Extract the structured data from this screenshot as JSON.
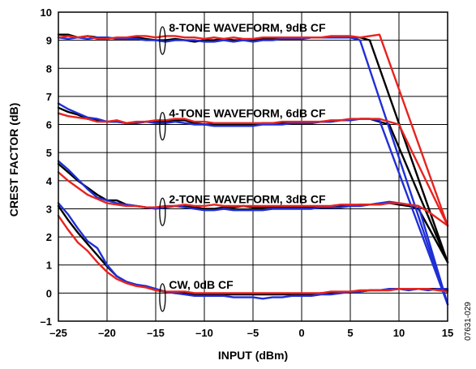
{
  "chart_data": {
    "type": "line",
    "xlabel": "INPUT (dBm)",
    "ylabel": "CREST FACTOR (dB)",
    "xlim": [
      -25,
      15
    ],
    "ylim": [
      -1,
      10
    ],
    "xticks": [
      "–25",
      "–20",
      "–15",
      "–10",
      "–5",
      "0",
      "5",
      "10",
      "15"
    ],
    "yticks": [
      "–1",
      "0",
      "1",
      "2",
      "3",
      "4",
      "5",
      "6",
      "7",
      "8",
      "9",
      "10"
    ],
    "grid": true,
    "figure_id": "07631-029",
    "annotations": [
      {
        "text": "8-TONE WAVEFORM, 9dB CF",
        "x": -14.3,
        "y": 9.25
      },
      {
        "text": "4-TONE WAVEFORM, 6dB CF",
        "x": -14.3,
        "y": 6.2
      },
      {
        "text": "2-TONE WAVEFORM, 3dB CF",
        "x": -14.3,
        "y": 3.15
      },
      {
        "text": "CW, 0dB CF",
        "x": -14.3,
        "y": 0.1
      }
    ],
    "colors": {
      "black": "#000000",
      "red": "#e8231f",
      "blue": "#1f2fd6"
    },
    "series": [
      {
        "group": "8-TONE",
        "color": "black",
        "x": [
          -25,
          -24,
          -23,
          -22,
          -21,
          -20,
          -19,
          -18,
          -17,
          -16,
          -15,
          -14,
          -13,
          -12,
          -11,
          -10,
          -9,
          -8,
          -7,
          -6,
          -5,
          -4,
          -3,
          -2,
          -1,
          0,
          1,
          2,
          3,
          4,
          5,
          6,
          7,
          15
        ],
        "y": [
          9.2,
          9.2,
          9.1,
          9.15,
          9.1,
          9.1,
          9.05,
          9.1,
          9.1,
          9.05,
          9.0,
          9.0,
          9.05,
          9.0,
          8.95,
          9.0,
          9.0,
          9.05,
          9.0,
          9.0,
          9.0,
          9.05,
          9.05,
          9.05,
          9.05,
          9.05,
          9.1,
          9.1,
          9.1,
          9.1,
          9.1,
          9.1,
          9.0,
          1.1
        ]
      },
      {
        "group": "8-TONE",
        "color": "red",
        "x": [
          -25,
          -24,
          -23,
          -22,
          -21,
          -20,
          -19,
          -18,
          -17,
          -16,
          -15,
          -14,
          -13,
          -12,
          -11,
          -10,
          -9,
          -8,
          -7,
          -6,
          -5,
          -4,
          -3,
          -2,
          -1,
          0,
          1,
          2,
          3,
          4,
          5,
          6,
          7,
          8,
          15
        ],
        "y": [
          9.1,
          9.15,
          9.1,
          9.15,
          9.05,
          9.05,
          9.1,
          9.1,
          9.15,
          9.15,
          9.1,
          9.15,
          9.15,
          9.1,
          9.1,
          9.05,
          9.1,
          9.05,
          9.1,
          9.05,
          9.05,
          9.1,
          9.1,
          9.1,
          9.1,
          9.1,
          9.1,
          9.1,
          9.15,
          9.15,
          9.15,
          9.1,
          9.15,
          9.2,
          2.4
        ]
      },
      {
        "group": "8-TONE",
        "color": "blue",
        "x": [
          -25,
          -24,
          -23,
          -22,
          -21,
          -20,
          -19,
          -18,
          -17,
          -16,
          -15,
          -14,
          -13,
          -12,
          -11,
          -10,
          -9,
          -8,
          -7,
          -6,
          -5,
          -4,
          -3,
          -2,
          -1,
          0,
          1,
          2,
          3,
          4,
          5,
          6,
          15
        ],
        "y": [
          9.1,
          9.05,
          9.1,
          9.05,
          9.1,
          9.1,
          9.05,
          9.05,
          9.05,
          9.0,
          9.0,
          8.95,
          9.0,
          9.0,
          9.0,
          8.95,
          8.95,
          9.0,
          8.95,
          9.0,
          8.95,
          9.0,
          9.0,
          9.05,
          9.05,
          9.05,
          9.1,
          9.1,
          9.1,
          9.1,
          9.1,
          9.0,
          -0.4
        ]
      },
      {
        "group": "4-TONE",
        "color": "black",
        "x": [
          -25,
          -24,
          -23,
          -22,
          -21,
          -20,
          -19,
          -18,
          -17,
          -16,
          -15,
          -14,
          -13,
          -12,
          -11,
          -10,
          -9,
          -8,
          -7,
          -6,
          -5,
          -4,
          -3,
          -2,
          -1,
          0,
          1,
          2,
          3,
          4,
          5,
          6,
          7,
          8,
          9,
          15
        ],
        "y": [
          6.6,
          6.45,
          6.35,
          6.2,
          6.15,
          6.1,
          6.1,
          6.05,
          6.05,
          6.1,
          6.1,
          6.1,
          6.15,
          6.15,
          6.05,
          6.0,
          6.0,
          6.0,
          6.0,
          6.0,
          6.0,
          6.05,
          6.05,
          6.05,
          6.05,
          6.05,
          6.05,
          6.1,
          6.1,
          6.15,
          6.15,
          6.2,
          6.2,
          6.1,
          6.0,
          1.1
        ]
      },
      {
        "group": "4-TONE",
        "color": "red",
        "x": [
          -25,
          -24,
          -23,
          -22,
          -21,
          -20,
          -19,
          -18,
          -17,
          -16,
          -15,
          -14,
          -13,
          -12,
          -11,
          -10,
          -9,
          -8,
          -7,
          -6,
          -5,
          -4,
          -3,
          -2,
          -1,
          0,
          1,
          2,
          3,
          4,
          5,
          6,
          7,
          8,
          9,
          10,
          15
        ],
        "y": [
          6.4,
          6.3,
          6.25,
          6.2,
          6.1,
          6.1,
          6.15,
          6.05,
          6.1,
          6.1,
          6.15,
          6.15,
          6.2,
          6.2,
          6.1,
          6.1,
          6.05,
          6.05,
          6.05,
          6.05,
          6.05,
          6.05,
          6.05,
          6.1,
          6.1,
          6.1,
          6.1,
          6.1,
          6.15,
          6.15,
          6.2,
          6.2,
          6.2,
          6.2,
          6.1,
          6.0,
          2.4
        ]
      },
      {
        "group": "4-TONE",
        "color": "blue",
        "x": [
          -25,
          -24,
          -23,
          -22,
          -21,
          -20,
          -19,
          -18,
          -17,
          -16,
          -15,
          -14,
          -13,
          -12,
          -11,
          -10,
          -9,
          -8,
          -7,
          -6,
          -5,
          -4,
          -3,
          -2,
          -1,
          0,
          1,
          2,
          3,
          4,
          5,
          6,
          7,
          8,
          15
        ],
        "y": [
          6.75,
          6.55,
          6.4,
          6.25,
          6.2,
          6.1,
          6.1,
          6.05,
          6.05,
          6.1,
          6.05,
          6.05,
          6.1,
          6.05,
          6.0,
          6.0,
          5.95,
          5.95,
          5.95,
          5.95,
          5.95,
          6.0,
          6.0,
          6.0,
          6.05,
          6.05,
          6.05,
          6.1,
          6.1,
          6.15,
          6.15,
          6.2,
          6.2,
          6.15,
          -0.4
        ]
      },
      {
        "group": "2-TONE",
        "color": "black",
        "x": [
          -25,
          -24,
          -23,
          -22,
          -21,
          -20,
          -19,
          -18,
          -17,
          -16,
          -15,
          -14,
          -13,
          -12,
          -11,
          -10,
          -9,
          -8,
          -7,
          -6,
          -5,
          -4,
          -3,
          -2,
          -1,
          0,
          1,
          2,
          3,
          4,
          5,
          6,
          7,
          8,
          9,
          10,
          11,
          12,
          15
        ],
        "y": [
          4.6,
          4.3,
          4.0,
          3.75,
          3.5,
          3.3,
          3.3,
          3.15,
          3.1,
          3.05,
          3.05,
          3.05,
          3.1,
          3.1,
          3.05,
          3.0,
          3.0,
          3.05,
          3.05,
          3.1,
          3.05,
          3.05,
          3.05,
          3.05,
          3.05,
          3.05,
          3.05,
          3.05,
          3.05,
          3.1,
          3.1,
          3.15,
          3.15,
          3.15,
          3.2,
          3.15,
          3.1,
          3.0,
          1.1
        ]
      },
      {
        "group": "2-TONE",
        "color": "red",
        "x": [
          -25,
          -24,
          -23,
          -22,
          -21,
          -20,
          -19,
          -18,
          -17,
          -16,
          -15,
          -14,
          -13,
          -12,
          -11,
          -10,
          -9,
          -8,
          -7,
          -6,
          -5,
          -4,
          -3,
          -2,
          -1,
          0,
          1,
          2,
          3,
          4,
          5,
          6,
          7,
          8,
          9,
          10,
          11,
          12,
          13,
          15
        ],
        "y": [
          4.3,
          4.0,
          3.75,
          3.5,
          3.35,
          3.2,
          3.15,
          3.1,
          3.1,
          3.05,
          3.05,
          3.1,
          3.1,
          3.15,
          3.1,
          3.1,
          3.15,
          3.1,
          3.1,
          3.1,
          3.1,
          3.1,
          3.1,
          3.1,
          3.1,
          3.1,
          3.1,
          3.1,
          3.1,
          3.15,
          3.15,
          3.15,
          3.15,
          3.15,
          3.2,
          3.2,
          3.15,
          3.1,
          2.9,
          2.4
        ]
      },
      {
        "group": "2-TONE",
        "color": "blue",
        "x": [
          -25,
          -24,
          -23,
          -22,
          -21,
          -20,
          -19,
          -18,
          -17,
          -16,
          -15,
          -14,
          -13,
          -12,
          -11,
          -10,
          -9,
          -8,
          -7,
          -6,
          -5,
          -4,
          -3,
          -2,
          -1,
          0,
          1,
          2,
          3,
          4,
          5,
          6,
          7,
          8,
          9,
          10,
          11,
          12,
          15
        ],
        "y": [
          4.7,
          4.4,
          4.05,
          3.7,
          3.4,
          3.3,
          3.2,
          3.15,
          3.1,
          3.05,
          3.0,
          3.05,
          3.1,
          3.05,
          3.0,
          2.95,
          2.95,
          3.0,
          2.95,
          2.95,
          2.95,
          2.95,
          3.0,
          3.0,
          3.0,
          3.0,
          3.0,
          3.05,
          3.05,
          3.05,
          3.1,
          3.1,
          3.15,
          3.2,
          3.25,
          3.2,
          3.15,
          3.1,
          -0.4
        ]
      },
      {
        "group": "CW",
        "color": "black",
        "x": [
          -25,
          -24,
          -23,
          -22,
          -21,
          -20,
          -19,
          -18,
          -17,
          -16,
          -15,
          -14,
          -13,
          -12,
          -11,
          -10,
          -9,
          -8,
          -7,
          -6,
          -5,
          -4,
          -3,
          -2,
          -1,
          0,
          1,
          2,
          3,
          4,
          5,
          6,
          7,
          8,
          9,
          10,
          11,
          12,
          13,
          14,
          15
        ],
        "y": [
          3.1,
          2.6,
          2.15,
          1.75,
          1.35,
          0.95,
          0.6,
          0.4,
          0.3,
          0.2,
          0.1,
          0.05,
          0.0,
          0.0,
          -0.05,
          -0.05,
          -0.05,
          -0.05,
          -0.05,
          -0.05,
          -0.05,
          -0.05,
          -0.05,
          -0.05,
          -0.05,
          -0.05,
          -0.05,
          0.0,
          0.0,
          0.0,
          0.05,
          0.05,
          0.1,
          0.1,
          0.1,
          0.15,
          0.15,
          0.15,
          0.15,
          0.15,
          0.1
        ]
      },
      {
        "group": "CW",
        "color": "red",
        "x": [
          -25,
          -24,
          -23,
          -22,
          -21,
          -20,
          -19,
          -18,
          -17,
          -16,
          -15,
          -14,
          -13,
          -12,
          -11,
          -10,
          -9,
          -8,
          -7,
          -6,
          -5,
          -4,
          -3,
          -2,
          -1,
          0,
          1,
          2,
          3,
          4,
          5,
          6,
          7,
          8,
          9,
          10,
          11,
          12,
          13,
          14,
          15
        ],
        "y": [
          2.75,
          2.25,
          1.8,
          1.5,
          1.1,
          0.75,
          0.5,
          0.35,
          0.25,
          0.2,
          0.1,
          0.05,
          0.05,
          0.05,
          0.0,
          0.0,
          0.0,
          0.0,
          0.0,
          0.0,
          0.0,
          0.0,
          0.0,
          0.0,
          0.0,
          0.0,
          0.0,
          0.0,
          0.05,
          0.05,
          0.05,
          0.1,
          0.1,
          0.1,
          0.1,
          0.15,
          0.15,
          0.15,
          0.15,
          0.1,
          0.05
        ]
      },
      {
        "group": "CW",
        "color": "blue",
        "x": [
          -25,
          -24,
          -23,
          -22,
          -21,
          -20,
          -19,
          -18,
          -17,
          -16,
          -15,
          -14,
          -13,
          -12,
          -11,
          -10,
          -9,
          -8,
          -7,
          -6,
          -5,
          -4,
          -3,
          -2,
          -1,
          0,
          1,
          2,
          3,
          4,
          5,
          6,
          7,
          8,
          9,
          10,
          11,
          12,
          13,
          14,
          15
        ],
        "y": [
          3.2,
          2.8,
          2.3,
          1.85,
          1.6,
          1.0,
          0.6,
          0.4,
          0.3,
          0.25,
          0.15,
          0.05,
          0.0,
          -0.05,
          -0.1,
          -0.1,
          -0.1,
          -0.1,
          -0.15,
          -0.15,
          -0.15,
          -0.2,
          -0.15,
          -0.15,
          -0.1,
          -0.1,
          -0.1,
          -0.05,
          -0.05,
          0.0,
          0.05,
          0.05,
          0.1,
          0.1,
          0.15,
          0.15,
          0.1,
          0.15,
          0.1,
          0.15,
          0.15
        ]
      }
    ]
  }
}
